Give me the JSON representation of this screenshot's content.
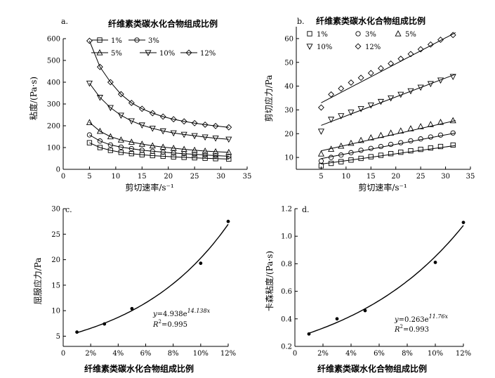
{
  "chart_data": [
    {
      "id": "a",
      "type": "line",
      "panel_label": "a.",
      "legend_title": "纤维素类碳水化合物组成比例",
      "xlabel": "剪切速率/s⁻¹",
      "ylabel": "粘度/(Pa·s)",
      "xlim": [
        0,
        35
      ],
      "ylim": [
        0,
        600
      ],
      "xticks": [
        0,
        5,
        10,
        15,
        20,
        25,
        30,
        35
      ],
      "yticks": [
        0,
        100,
        200,
        300,
        400,
        500,
        600
      ],
      "x": [
        5,
        7,
        9,
        11,
        13,
        15,
        17,
        19,
        21,
        23,
        25,
        27,
        29,
        31.5
      ],
      "series": [
        {
          "name": "1%",
          "marker": "square",
          "values": [
            122,
            100,
            87,
            78,
            72,
            67,
            63,
            60,
            57,
            55,
            53,
            51,
            49,
            47
          ]
        },
        {
          "name": "3%",
          "marker": "circle",
          "values": [
            158,
            130,
            112,
            102,
            95,
            88,
            83,
            79,
            75,
            72,
            69,
            66,
            63,
            60
          ]
        },
        {
          "name": "5%",
          "marker": "triangle",
          "values": [
            215,
            175,
            150,
            135,
            125,
            116,
            108,
            102,
            97,
            92,
            88,
            84,
            81,
            78
          ]
        },
        {
          "name": "10%",
          "marker": "tri-down",
          "values": [
            395,
            330,
            283,
            248,
            222,
            203,
            188,
            176,
            167,
            160,
            154,
            148,
            143,
            138
          ]
        },
        {
          "name": "12%",
          "marker": "diamond",
          "values": [
            590,
            470,
            400,
            345,
            305,
            278,
            258,
            242,
            230,
            220,
            212,
            205,
            199,
            193
          ]
        }
      ]
    },
    {
      "id": "b",
      "type": "scatter",
      "panel_label": "b.",
      "legend_title": "纤维素类碳水化合物组成比例",
      "xlabel": "剪切速率/s⁻¹",
      "ylabel": "剪切应力/Pa",
      "xlim": [
        0,
        35
      ],
      "ylim": [
        5,
        65
      ],
      "xticks": [
        5,
        10,
        15,
        20,
        25,
        30,
        35
      ],
      "yticks": [
        10,
        20,
        30,
        40,
        50,
        60
      ],
      "x": [
        5,
        7,
        9,
        11,
        13,
        15,
        17,
        19,
        21,
        23,
        25,
        27,
        29,
        31.5
      ],
      "series": [
        {
          "name": "1%",
          "marker": "square",
          "values": [
            6.5,
            7.5,
            8.2,
            8.9,
            9.6,
            10.3,
            10.9,
            11.6,
            12.2,
            12.8,
            13.4,
            14.0,
            14.6,
            15.2
          ]
        },
        {
          "name": "3%",
          "marker": "circle",
          "values": [
            8.5,
            10.0,
            11.0,
            12.0,
            13.0,
            13.8,
            14.6,
            15.5,
            16.2,
            17.0,
            17.8,
            18.6,
            19.4,
            20.3
          ]
        },
        {
          "name": "5%",
          "marker": "triangle",
          "values": [
            11.5,
            13.5,
            14.8,
            16.0,
            17.2,
            18.3,
            19.3,
            20.3,
            21.2,
            22.1,
            23.0,
            23.9,
            24.8,
            25.5
          ]
        },
        {
          "name": "10%",
          "marker": "tri-down",
          "values": [
            21,
            26,
            27.5,
            29,
            30.5,
            32,
            33.5,
            35,
            36.5,
            38,
            39.5,
            41,
            42.5,
            44
          ]
        },
        {
          "name": "12%",
          "marker": "diamond",
          "values": [
            31,
            36.5,
            39,
            41.5,
            43.5,
            45.5,
            47.5,
            49.5,
            51.5,
            53.5,
            55.5,
            57.5,
            59.5,
            61.5
          ]
        }
      ],
      "fit_lines": [
        {
          "name": "1%",
          "y_start": 7.2,
          "y_end": 15.0
        },
        {
          "name": "3%",
          "y_start": 9.5,
          "y_end": 20.3
        },
        {
          "name": "5%",
          "y_start": 12.8,
          "y_end": 25.5
        },
        {
          "name": "10%",
          "y_start": 23.5,
          "y_end": 45.0
        },
        {
          "name": "12%",
          "y_start": 33.0,
          "y_end": 62.5
        }
      ]
    },
    {
      "id": "c",
      "type": "scatter",
      "panel_label": "c.",
      "xlabel": "纤维素类碳水化合物组成比例",
      "ylabel": "屈服应力/Pa",
      "xlim": [
        0,
        0.12
      ],
      "ylim": [
        3,
        30
      ],
      "xticks": [
        "0",
        "2%",
        "4%",
        "6%",
        "8%",
        "10%",
        "12%"
      ],
      "yticks": [
        5,
        10,
        15,
        20,
        25,
        30
      ],
      "x": [
        0.01,
        0.03,
        0.05,
        0.1,
        0.12
      ],
      "values": [
        5.8,
        7.4,
        10.4,
        19.3,
        27.5
      ],
      "fit": {
        "a": 4.938,
        "b": 14.138
      },
      "equation_y": "y",
      "equation_rhs": "=4.938e",
      "equation_exp": "14.138x",
      "r2_label": "R",
      "r2_value": "=0.995"
    },
    {
      "id": "d",
      "type": "scatter",
      "panel_label": "d.",
      "xlabel": "纤维素类碳水化合物组成比例",
      "ylabel": "卡森粘度/(Pa·s)",
      "xlim": [
        0,
        0.12
      ],
      "ylim": [
        0.2,
        1.2
      ],
      "xticks": [
        "0",
        "2%",
        "4%",
        "6%",
        "8%",
        "10%",
        "12%"
      ],
      "yticks": [
        0.2,
        0.4,
        0.6,
        0.8,
        1.0,
        1.2
      ],
      "x": [
        0.01,
        0.03,
        0.05,
        0.1,
        0.12
      ],
      "values": [
        0.29,
        0.4,
        0.46,
        0.81,
        1.1
      ],
      "fit": {
        "a": 0.263,
        "b": 11.76
      },
      "equation_y": "y",
      "equation_rhs": "=0.263e",
      "equation_exp": "11.76x",
      "r2_label": "R",
      "r2_value": "=0.993"
    }
  ]
}
